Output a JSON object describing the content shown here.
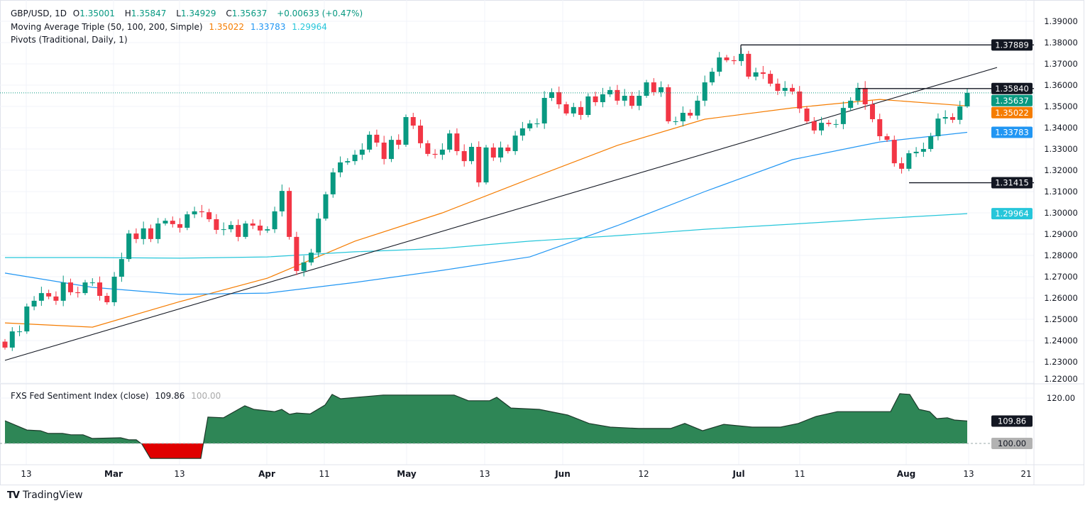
{
  "header": {
    "symbol": "GBP/USD, 1D",
    "open_label": "O",
    "open": "1.35001",
    "high_label": "H",
    "high": "1.35847",
    "low_label": "L",
    "low": "1.34929",
    "close_label": "C",
    "close": "1.35637",
    "change": "+0.00633 (+0.47%)",
    "ma_title": "Moving Average Triple (50, 100, 200, Simple)",
    "ma50": "1.35022",
    "ma100": "1.33783",
    "ma200": "1.29964",
    "pivots_title": "Pivots (Traditional, Daily, 1)"
  },
  "sub_pane": {
    "title": "FXS Fed Sentiment Index (close)",
    "value": "109.86",
    "baseline": "100.00"
  },
  "branding": {
    "name": "TradingView"
  },
  "colors": {
    "up": "#089981",
    "down": "#f23645",
    "ma50": "#f57c00",
    "ma100": "#2196f3",
    "ma200": "#26c6da",
    "sentiment_pos": "#2e8656",
    "sentiment_neg": "#e00000",
    "pivot": "#131722"
  },
  "chart_data": {
    "type": "candlestick",
    "symbol": "GBP/USD",
    "interval": "1D",
    "first_open": 1.2395,
    "closes": [
      1.2367,
      1.2443,
      1.2443,
      1.256,
      1.2587,
      1.2623,
      1.2607,
      1.2587,
      1.2673,
      1.2627,
      1.2623,
      1.2673,
      1.2673,
      1.261,
      1.258,
      1.27,
      1.2783,
      1.2903,
      1.2877,
      1.2927,
      1.2877,
      1.295,
      1.2963,
      1.2947,
      1.293,
      1.2993,
      1.3007,
      1.3003,
      1.297,
      1.292,
      1.2923,
      1.2943,
      1.2887,
      1.295,
      1.294,
      1.2917,
      1.2923,
      1.3007,
      1.3103,
      1.2887,
      1.2727,
      1.2767,
      1.2813,
      1.2973,
      1.3087,
      1.319,
      1.3237,
      1.3243,
      1.3273,
      1.3297,
      1.3367,
      1.333,
      1.3253,
      1.3343,
      1.332,
      1.345,
      1.341,
      1.3327,
      1.3277,
      1.3273,
      1.3297,
      1.3373,
      1.329,
      1.3243,
      1.331,
      1.3143,
      1.3307,
      1.326,
      1.3307,
      1.329,
      1.3363,
      1.3397,
      1.342,
      1.342,
      1.354,
      1.3567,
      1.351,
      1.3467,
      1.3497,
      1.346,
      1.3547,
      1.352,
      1.3557,
      1.3577,
      1.3527,
      1.355,
      1.3503,
      1.355,
      1.3613,
      1.3567,
      1.359,
      1.343,
      1.343,
      1.347,
      1.3457,
      1.3527,
      1.3613,
      1.3663,
      1.373,
      1.3717,
      1.3713,
      1.3747,
      1.364,
      1.366,
      1.3653,
      1.3607,
      1.3573,
      1.3587,
      1.357,
      1.349,
      1.343,
      1.3387,
      1.3423,
      1.3417,
      1.3417,
      1.3493,
      1.3527,
      1.3587,
      1.351,
      1.344,
      1.336,
      1.3343,
      1.3233,
      1.3207,
      1.328,
      1.3287,
      1.33,
      1.336,
      1.3443,
      1.345,
      1.3437,
      1.35001,
      1.35637
    ],
    "last_candle": {
      "open": 1.35001,
      "high": 1.35847,
      "low": 1.34929,
      "close": 1.35637
    },
    "moving_averages": [
      {
        "name": "SMA 50",
        "color": "#f57c00",
        "values": [
          1.2483,
          1.2463,
          1.2583,
          1.2693,
          1.2867,
          1.3,
          1.316,
          1.3317,
          1.344,
          1.3493,
          1.3533,
          1.35022
        ]
      },
      {
        "name": "SMA 100",
        "color": "#2196f3",
        "values": [
          1.2717,
          1.265,
          1.2617,
          1.2623,
          1.2673,
          1.273,
          1.2793,
          1.294,
          1.31,
          1.325,
          1.3333,
          1.33783
        ]
      },
      {
        "name": "SMA 200",
        "color": "#26c6da",
        "values": [
          1.279,
          1.279,
          1.2787,
          1.2793,
          1.2817,
          1.2833,
          1.2867,
          1.2893,
          1.2923,
          1.2947,
          1.2973,
          1.29964
        ]
      }
    ],
    "trendline": {
      "start": 1.2307,
      "end": 1.3683
    },
    "pivot_levels": [
      {
        "price": 1.37889,
        "label": "1.37889"
      },
      {
        "price": 1.3584,
        "label": "1.35840"
      },
      {
        "price": 1.31415,
        "label": "1.31415"
      }
    ],
    "current_price": {
      "price": 1.35637,
      "label": "1.35637"
    },
    "price_badges": [
      {
        "price": 1.37889,
        "label": "1.37889",
        "color": "#131722"
      },
      {
        "price": 1.3584,
        "label": "1.35840",
        "color": "#131722"
      },
      {
        "price": 1.35637,
        "label": "1.35637",
        "color": "#089981"
      },
      {
        "price": 1.35022,
        "label": "1.35022",
        "color": "#f57c00"
      },
      {
        "price": 1.33783,
        "label": "1.33783",
        "color": "#2196f3"
      },
      {
        "price": 1.31415,
        "label": "1.31415",
        "color": "#131722"
      },
      {
        "price": 1.29964,
        "label": "1.29964",
        "color": "#26c6da"
      }
    ],
    "y_ticks": [
      "1.39000",
      "1.38000",
      "1.37000",
      "1.36000",
      "1.35000",
      "1.34000",
      "1.33000",
      "1.32000",
      "1.31000",
      "1.30000",
      "1.29000",
      "1.28000",
      "1.27000",
      "1.26000",
      "1.25000",
      "1.24000",
      "1.23000",
      "1.22000"
    ],
    "ylim": [
      1.22,
      1.39
    ],
    "x_ticks": [
      "13",
      "Mar",
      "13",
      "Apr",
      "11",
      "May",
      "13",
      "Jun",
      "12",
      "Jul",
      "11",
      "Aug",
      "13",
      "21"
    ],
    "sentiment": {
      "name": "FXS Fed Sentiment Index (close)",
      "baseline": 100,
      "values": [
        110,
        105.9,
        105.6,
        104.4,
        104.4,
        103.8,
        103.8,
        102.2,
        102.5,
        101.6,
        101.6,
        99.7,
        93.4,
        93.4,
        111.6,
        111.3,
        116.6,
        115,
        114,
        115,
        112.8,
        113.4,
        113,
        116.9,
        121.6,
        119.7,
        121.3,
        121.3,
        118.8,
        118.8,
        120.3,
        115.6,
        115,
        112.5,
        108.8,
        107.2,
        106.6,
        106.6,
        108.8,
        105.6,
        108.4,
        107.2,
        107.2,
        108.8,
        111.9,
        114,
        114,
        121.9,
        121.6,
        115,
        114,
        110.9,
        111.3,
        110.3,
        109.86
      ],
      "y_ticks": [
        "120.00"
      ],
      "badges": [
        {
          "label": "109.86",
          "value": 109.86,
          "color": "#131722"
        },
        {
          "label": "100.00",
          "value": 100,
          "color": "#b2b2b2"
        }
      ]
    }
  }
}
